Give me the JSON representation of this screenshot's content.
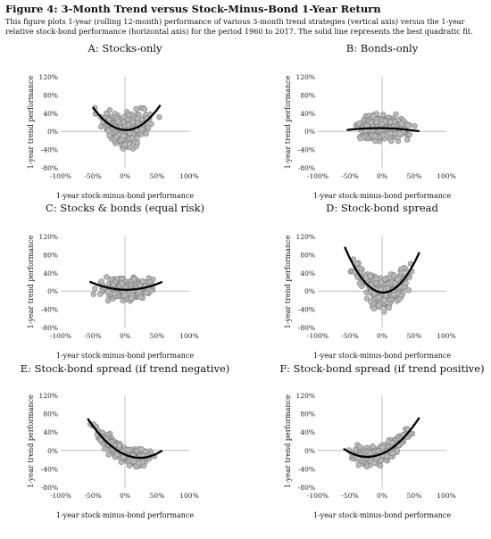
{
  "figure": {
    "title": "Figure 4: 3-Month Trend versus Stock-Minus-Bond 1-Year Return",
    "caption": "This figure plots 1-year (rolling 12-month) performance of various 3-month trend strategies (vertical axis) versus the 1-year relative stock-bond performance (horizontal axis) for the period 1960 to 2017. The solid line represents the best quadratic fit."
  },
  "colors": {
    "point_fill": "#b9b9b9",
    "point_stroke": "#7d7d7d",
    "fit_line": "#000000",
    "axis": "#bfbfbf"
  },
  "chart_data": [
    {
      "type": "scatter",
      "title": "A: Stocks-only",
      "xlabel": "1-year stock-minus-bond performance",
      "ylabel": "1-year trend performance",
      "xlim": [
        -100,
        100
      ],
      "ylim": [
        -80,
        120
      ],
      "xticks": [
        "-100%",
        "-50%",
        "0%",
        "50%",
        "100%"
      ],
      "yticks": [
        "-80%",
        "-40%",
        "0%",
        "40%",
        "80%",
        "120%"
      ],
      "grid": false,
      "cloud": {
        "x_min": -52,
        "x_max": 55,
        "y_min": -38,
        "y_max": 95,
        "spread": 26,
        "n": 300
      },
      "fit": {
        "a": 0.019,
        "b": -0.05,
        "c": 3,
        "x_range": [
          -50,
          55
        ]
      }
    },
    {
      "type": "scatter",
      "title": "B: Bonds-only",
      "xlabel": "1-year stock-minus-bond performance",
      "ylabel": "1-year trend performance",
      "xlim": [
        -100,
        100
      ],
      "ylim": [
        -80,
        120
      ],
      "xticks": [
        "-100%",
        "-50%",
        "0%",
        "50%",
        "100%"
      ],
      "yticks": [
        "-80%",
        "-40%",
        "0%",
        "40%",
        "80%",
        "120%"
      ],
      "grid": false,
      "cloud": {
        "x_min": -55,
        "x_max": 58,
        "y_min": -35,
        "y_max": 85,
        "spread": 20,
        "n": 300
      },
      "fit": {
        "a": -0.0017,
        "b": -0.02,
        "c": 7,
        "x_range": [
          -55,
          58
        ]
      }
    },
    {
      "type": "scatter",
      "title": "C: Stocks & bonds (equal risk)",
      "xlabel": "1-year stock-minus-bond performance",
      "ylabel": "1-year trend performance",
      "xlim": [
        -100,
        100
      ],
      "ylim": [
        -80,
        120
      ],
      "xticks": [
        "-100%",
        "-50%",
        "0%",
        "50%",
        "100%"
      ],
      "yticks": [
        "-80%",
        "-40%",
        "0%",
        "40%",
        "80%",
        "120%"
      ],
      "grid": false,
      "cloud": {
        "x_min": -55,
        "x_max": 58,
        "y_min": -35,
        "y_max": 85,
        "spread": 18,
        "n": 300
      },
      "fit": {
        "a": 0.0055,
        "b": -0.02,
        "c": 3,
        "x_range": [
          -55,
          58
        ]
      }
    },
    {
      "type": "scatter",
      "title": "D: Stock-bond spread",
      "xlabel": "1-year stock-minus-bond performance",
      "ylabel": "1-year trend performance",
      "xlim": [
        -100,
        100
      ],
      "ylim": [
        -80,
        120
      ],
      "xticks": [
        "-100%",
        "-50%",
        "0%",
        "50%",
        "100%"
      ],
      "yticks": [
        "-80%",
        "-40%",
        "0%",
        "40%",
        "80%",
        "120%"
      ],
      "grid": false,
      "cloud": {
        "x_min": -58,
        "x_max": 55,
        "y_min": -65,
        "y_max": 110,
        "spread": 24,
        "n": 320
      },
      "fit": {
        "a": 0.028,
        "b": -0.1,
        "c": -3,
        "x_range": [
          -58,
          58
        ]
      }
    },
    {
      "type": "scatter",
      "title": "E: Stock-bond spread (if trend negative)",
      "xlabel": "1-year stock-minus-bond performance",
      "ylabel": "1-year trend performance",
      "xlim": [
        -100,
        100
      ],
      "ylim": [
        -80,
        120
      ],
      "xticks": [
        "-100%",
        "-50%",
        "0%",
        "50%",
        "100%"
      ],
      "yticks": [
        "-80%",
        "-40%",
        "0%",
        "40%",
        "80%",
        "120%"
      ],
      "grid": false,
      "cloud": {
        "x_min": -60,
        "x_max": 55,
        "y_min": -35,
        "y_max": 115,
        "spread": 14,
        "n": 300
      },
      "fit": {
        "a": 0.013,
        "b": -0.6,
        "c": -9,
        "x_range": [
          -58,
          58
        ]
      }
    },
    {
      "type": "scatter",
      "title": "F: Stock-bond spread (if trend positive)",
      "xlabel": "1-year stock-minus-bond performance",
      "ylabel": "1-year trend performance",
      "xlim": [
        -100,
        100
      ],
      "ylim": [
        -80,
        120
      ],
      "xticks": [
        "-100%",
        "-50%",
        "0%",
        "50%",
        "100%"
      ],
      "yticks": [
        "-80%",
        "-40%",
        "0%",
        "40%",
        "80%",
        "120%"
      ],
      "grid": false,
      "cloud": {
        "x_min": -60,
        "x_max": 55,
        "y_min": -70,
        "y_max": 105,
        "spread": 14,
        "n": 300
      },
      "fit": {
        "a": 0.013,
        "b": 0.6,
        "c": -7,
        "x_range": [
          -60,
          58
        ]
      }
    }
  ]
}
